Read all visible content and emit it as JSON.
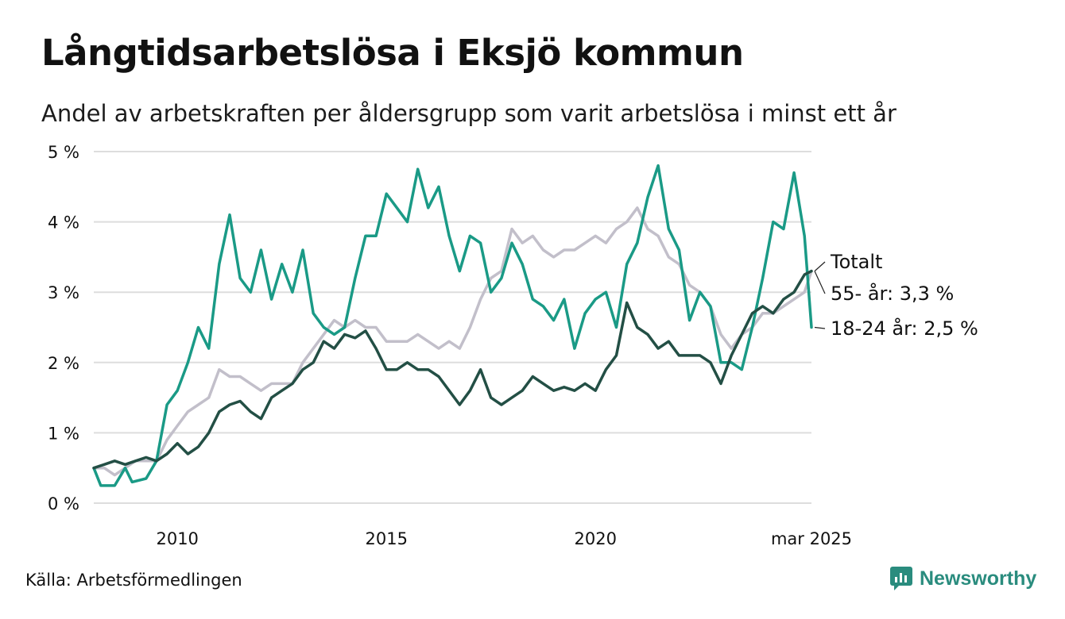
{
  "header": {
    "title": "Långtidsarbetslösa i Eksjö kommun",
    "subtitle": "Andel av arbetskraften per åldersgrupp som varit arbetslösa i minst ett år"
  },
  "footer": {
    "source": "Källa: Arbetsförmedlingen",
    "brand": "Newsworthy",
    "brand_color": "#2a8c7e"
  },
  "chart_data": {
    "type": "line",
    "title": "",
    "xlabel": "",
    "ylabel": "",
    "ylim": [
      0,
      5
    ],
    "x_range": [
      "2008-01",
      "2025-03"
    ],
    "y_ticks": [
      {
        "value": 0,
        "label": "0 %"
      },
      {
        "value": 1,
        "label": "1 %"
      },
      {
        "value": 2,
        "label": "2 %"
      },
      {
        "value": 3,
        "label": "3 %"
      },
      {
        "value": 4,
        "label": "4 %"
      },
      {
        "value": 5,
        "label": "5 %"
      }
    ],
    "x_ticks": [
      {
        "date": "2010-01",
        "label": "2010"
      },
      {
        "date": "2015-01",
        "label": "2015"
      },
      {
        "date": "2020-01",
        "label": "2020"
      },
      {
        "date": "2025-03",
        "label": "mar 2025"
      }
    ],
    "grid": true,
    "series": [
      {
        "name": "Totalt",
        "end_label": "Totalt",
        "color": "#c2bfca",
        "points": [
          [
            "2008-01",
            0.5
          ],
          [
            "2008-04",
            0.5
          ],
          [
            "2008-07",
            0.4
          ],
          [
            "2008-10",
            0.5
          ],
          [
            "2009-01",
            0.6
          ],
          [
            "2009-04",
            0.6
          ],
          [
            "2009-07",
            0.6
          ],
          [
            "2009-10",
            0.9
          ],
          [
            "2010-01",
            1.1
          ],
          [
            "2010-04",
            1.3
          ],
          [
            "2010-07",
            1.4
          ],
          [
            "2010-10",
            1.5
          ],
          [
            "2011-01",
            1.9
          ],
          [
            "2011-04",
            1.8
          ],
          [
            "2011-07",
            1.8
          ],
          [
            "2011-10",
            1.7
          ],
          [
            "2012-01",
            1.6
          ],
          [
            "2012-04",
            1.7
          ],
          [
            "2012-07",
            1.7
          ],
          [
            "2012-10",
            1.7
          ],
          [
            "2013-01",
            2.0
          ],
          [
            "2013-04",
            2.2
          ],
          [
            "2013-07",
            2.4
          ],
          [
            "2013-10",
            2.6
          ],
          [
            "2014-01",
            2.5
          ],
          [
            "2014-04",
            2.6
          ],
          [
            "2014-07",
            2.5
          ],
          [
            "2014-10",
            2.5
          ],
          [
            "2015-01",
            2.3
          ],
          [
            "2015-04",
            2.3
          ],
          [
            "2015-07",
            2.3
          ],
          [
            "2015-10",
            2.4
          ],
          [
            "2016-01",
            2.3
          ],
          [
            "2016-04",
            2.2
          ],
          [
            "2016-07",
            2.3
          ],
          [
            "2016-10",
            2.2
          ],
          [
            "2017-01",
            2.5
          ],
          [
            "2017-04",
            2.9
          ],
          [
            "2017-07",
            3.2
          ],
          [
            "2017-10",
            3.3
          ],
          [
            "2018-01",
            3.9
          ],
          [
            "2018-04",
            3.7
          ],
          [
            "2018-07",
            3.8
          ],
          [
            "2018-10",
            3.6
          ],
          [
            "2019-01",
            3.5
          ],
          [
            "2019-04",
            3.6
          ],
          [
            "2019-07",
            3.6
          ],
          [
            "2019-10",
            3.7
          ],
          [
            "2020-01",
            3.8
          ],
          [
            "2020-04",
            3.7
          ],
          [
            "2020-07",
            3.9
          ],
          [
            "2020-10",
            4.0
          ],
          [
            "2021-01",
            4.2
          ],
          [
            "2021-04",
            3.9
          ],
          [
            "2021-07",
            3.8
          ],
          [
            "2021-10",
            3.5
          ],
          [
            "2022-01",
            3.4
          ],
          [
            "2022-04",
            3.1
          ],
          [
            "2022-07",
            3.0
          ],
          [
            "2022-10",
            2.8
          ],
          [
            "2023-01",
            2.4
          ],
          [
            "2023-04",
            2.2
          ],
          [
            "2023-07",
            2.4
          ],
          [
            "2023-10",
            2.5
          ],
          [
            "2024-01",
            2.7
          ],
          [
            "2024-04",
            2.7
          ],
          [
            "2024-07",
            2.8
          ],
          [
            "2024-10",
            2.9
          ],
          [
            "2025-01",
            3.0
          ],
          [
            "2025-03",
            3.3
          ]
        ]
      },
      {
        "name": "18-24 år",
        "end_label": "18-24 år: 2,5 %",
        "color": "#1a9a86",
        "points": [
          [
            "2008-01",
            0.5
          ],
          [
            "2008-03",
            0.25
          ],
          [
            "2008-07",
            0.25
          ],
          [
            "2008-10",
            0.5
          ],
          [
            "2008-12",
            0.3
          ],
          [
            "2009-04",
            0.35
          ],
          [
            "2009-07",
            0.6
          ],
          [
            "2009-10",
            1.4
          ],
          [
            "2010-01",
            1.6
          ],
          [
            "2010-04",
            2.0
          ],
          [
            "2010-07",
            2.5
          ],
          [
            "2010-10",
            2.2
          ],
          [
            "2011-01",
            3.4
          ],
          [
            "2011-04",
            4.1
          ],
          [
            "2011-07",
            3.2
          ],
          [
            "2011-10",
            3.0
          ],
          [
            "2012-01",
            3.6
          ],
          [
            "2012-04",
            2.9
          ],
          [
            "2012-07",
            3.4
          ],
          [
            "2012-10",
            3.0
          ],
          [
            "2013-01",
            3.6
          ],
          [
            "2013-04",
            2.7
          ],
          [
            "2013-07",
            2.5
          ],
          [
            "2013-10",
            2.4
          ],
          [
            "2014-01",
            2.5
          ],
          [
            "2014-04",
            3.2
          ],
          [
            "2014-07",
            3.8
          ],
          [
            "2014-10",
            3.8
          ],
          [
            "2015-01",
            4.4
          ],
          [
            "2015-04",
            4.2
          ],
          [
            "2015-07",
            4.0
          ],
          [
            "2015-10",
            4.75
          ],
          [
            "2016-01",
            4.2
          ],
          [
            "2016-04",
            4.5
          ],
          [
            "2016-07",
            3.8
          ],
          [
            "2016-10",
            3.3
          ],
          [
            "2017-01",
            3.8
          ],
          [
            "2017-04",
            3.7
          ],
          [
            "2017-07",
            3.0
          ],
          [
            "2017-10",
            3.2
          ],
          [
            "2018-01",
            3.7
          ],
          [
            "2018-04",
            3.4
          ],
          [
            "2018-07",
            2.9
          ],
          [
            "2018-10",
            2.8
          ],
          [
            "2019-01",
            2.6
          ],
          [
            "2019-04",
            2.9
          ],
          [
            "2019-07",
            2.2
          ],
          [
            "2019-10",
            2.7
          ],
          [
            "2020-01",
            2.9
          ],
          [
            "2020-04",
            3.0
          ],
          [
            "2020-07",
            2.5
          ],
          [
            "2020-10",
            3.4
          ],
          [
            "2021-01",
            3.7
          ],
          [
            "2021-04",
            4.35
          ],
          [
            "2021-07",
            4.8
          ],
          [
            "2021-10",
            3.9
          ],
          [
            "2022-01",
            3.6
          ],
          [
            "2022-04",
            2.6
          ],
          [
            "2022-07",
            3.0
          ],
          [
            "2022-10",
            2.8
          ],
          [
            "2023-01",
            2.0
          ],
          [
            "2023-04",
            2.0
          ],
          [
            "2023-07",
            1.9
          ],
          [
            "2023-10",
            2.5
          ],
          [
            "2024-01",
            3.2
          ],
          [
            "2024-04",
            4.0
          ],
          [
            "2024-07",
            3.9
          ],
          [
            "2024-10",
            4.7
          ],
          [
            "2025-01",
            3.8
          ],
          [
            "2025-03",
            2.5
          ]
        ]
      },
      {
        "name": "55- år",
        "end_label": "55- år: 3,3 %",
        "color": "#234f45",
        "points": [
          [
            "2008-01",
            0.5
          ],
          [
            "2008-04",
            0.55
          ],
          [
            "2008-07",
            0.6
          ],
          [
            "2008-10",
            0.55
          ],
          [
            "2009-01",
            0.6
          ],
          [
            "2009-04",
            0.65
          ],
          [
            "2009-07",
            0.6
          ],
          [
            "2009-10",
            0.7
          ],
          [
            "2010-01",
            0.85
          ],
          [
            "2010-04",
            0.7
          ],
          [
            "2010-07",
            0.8
          ],
          [
            "2010-10",
            1.0
          ],
          [
            "2011-01",
            1.3
          ],
          [
            "2011-04",
            1.4
          ],
          [
            "2011-07",
            1.45
          ],
          [
            "2011-10",
            1.3
          ],
          [
            "2012-01",
            1.2
          ],
          [
            "2012-04",
            1.5
          ],
          [
            "2012-07",
            1.6
          ],
          [
            "2012-10",
            1.7
          ],
          [
            "2013-01",
            1.9
          ],
          [
            "2013-04",
            2.0
          ],
          [
            "2013-07",
            2.3
          ],
          [
            "2013-10",
            2.2
          ],
          [
            "2014-01",
            2.4
          ],
          [
            "2014-04",
            2.35
          ],
          [
            "2014-07",
            2.45
          ],
          [
            "2014-10",
            2.2
          ],
          [
            "2015-01",
            1.9
          ],
          [
            "2015-04",
            1.9
          ],
          [
            "2015-07",
            2.0
          ],
          [
            "2015-10",
            1.9
          ],
          [
            "2016-01",
            1.9
          ],
          [
            "2016-04",
            1.8
          ],
          [
            "2016-07",
            1.6
          ],
          [
            "2016-10",
            1.4
          ],
          [
            "2017-01",
            1.6
          ],
          [
            "2017-04",
            1.9
          ],
          [
            "2017-07",
            1.5
          ],
          [
            "2017-10",
            1.4
          ],
          [
            "2018-01",
            1.5
          ],
          [
            "2018-04",
            1.6
          ],
          [
            "2018-07",
            1.8
          ],
          [
            "2018-10",
            1.7
          ],
          [
            "2019-01",
            1.6
          ],
          [
            "2019-04",
            1.65
          ],
          [
            "2019-07",
            1.6
          ],
          [
            "2019-10",
            1.7
          ],
          [
            "2020-01",
            1.6
          ],
          [
            "2020-04",
            1.9
          ],
          [
            "2020-07",
            2.1
          ],
          [
            "2020-10",
            2.85
          ],
          [
            "2021-01",
            2.5
          ],
          [
            "2021-04",
            2.4
          ],
          [
            "2021-07",
            2.2
          ],
          [
            "2021-10",
            2.3
          ],
          [
            "2022-01",
            2.1
          ],
          [
            "2022-04",
            2.1
          ],
          [
            "2022-07",
            2.1
          ],
          [
            "2022-10",
            2.0
          ],
          [
            "2023-01",
            1.7
          ],
          [
            "2023-04",
            2.1
          ],
          [
            "2023-07",
            2.4
          ],
          [
            "2023-10",
            2.7
          ],
          [
            "2024-01",
            2.8
          ],
          [
            "2024-04",
            2.7
          ],
          [
            "2024-07",
            2.9
          ],
          [
            "2024-10",
            3.0
          ],
          [
            "2025-01",
            3.25
          ],
          [
            "2025-03",
            3.3
          ]
        ]
      }
    ],
    "legend": "end-of-line labels"
  }
}
